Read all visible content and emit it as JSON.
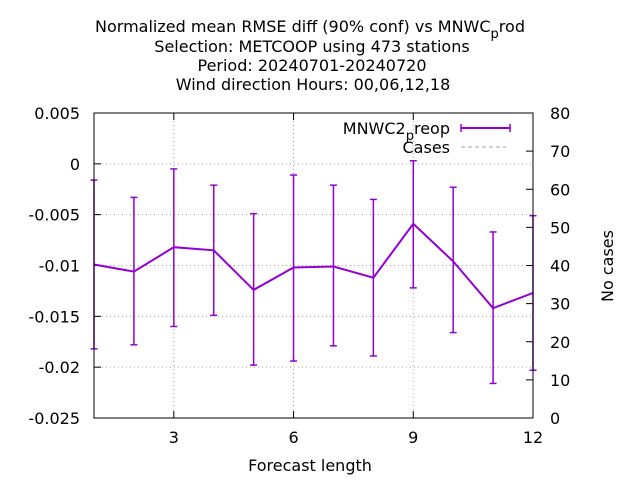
{
  "chart_data": {
    "type": "line",
    "title_lines": [
      "Normalized mean RMSE diff (90% conf) vs MNWC",
      "Selection: METCOOP using   473 stations",
      "Period: 20240701-20240720",
      "Wind direction   Hours:  00,06,12,18"
    ],
    "title_subscript": {
      "base": "p",
      "rest": "rod"
    },
    "xlabel": "Forecast length",
    "ylabel": "",
    "y2label": "No cases",
    "xlim": [
      1,
      12
    ],
    "ylim": [
      -0.025,
      0.005
    ],
    "y2lim": [
      0,
      80
    ],
    "x_ticks": [
      3,
      6,
      9,
      12
    ],
    "y_ticks": [
      "0.005",
      "0",
      "-0.005",
      "-0.01",
      "-0.015",
      "-0.02",
      "-0.025"
    ],
    "y2_ticks": [
      80,
      70,
      60,
      50,
      40,
      30,
      20,
      10,
      0
    ],
    "grid": true,
    "legend_position": "top-right",
    "series": [
      {
        "name": "MNWC2",
        "name_subscript": {
          "base": "p",
          "rest": "reop"
        },
        "color": "#9400d3",
        "x": [
          1,
          2,
          3,
          4,
          5,
          6,
          7,
          8,
          9,
          10,
          11,
          12
        ],
        "y": [
          -0.0099,
          -0.0106,
          -0.0082,
          -0.0085,
          -0.0124,
          -0.0102,
          -0.0101,
          -0.0112,
          -0.0059,
          -0.0096,
          -0.0142,
          -0.0127
        ],
        "y_low": [
          -0.0182,
          -0.0178,
          -0.016,
          -0.0149,
          -0.0198,
          -0.0194,
          -0.0179,
          -0.0189,
          -0.0122,
          -0.0166,
          -0.0216,
          -0.0203
        ],
        "y_high": [
          -0.0016,
          -0.0033,
          -0.0005,
          -0.0021,
          -0.0049,
          -0.0011,
          -0.0021,
          -0.0035,
          0.0003,
          -0.0023,
          -0.0067,
          -0.0051
        ]
      },
      {
        "name": "Cases",
        "color": "#a0a0a0",
        "x": [],
        "y": []
      }
    ]
  }
}
